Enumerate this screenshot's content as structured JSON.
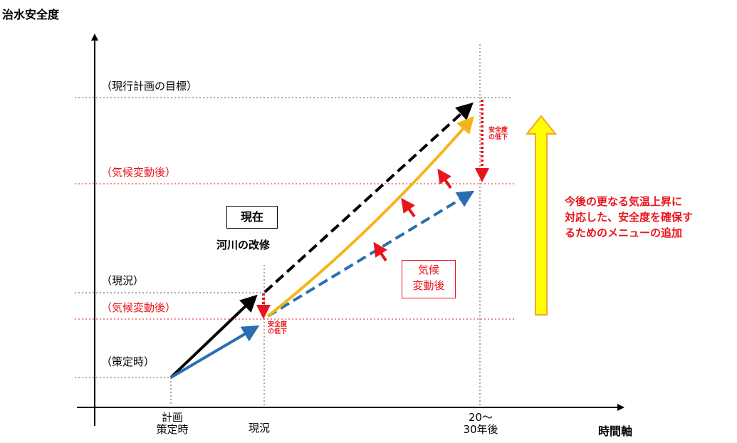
{
  "axes": {
    "y_title": "治水安全度",
    "x_title": "時間軸"
  },
  "y_levels": {
    "target": "（現行計画の目標）",
    "after_climate_upper": "（気候変動後）",
    "current": "（現況）",
    "after_climate_lower": "（気候変動後）",
    "plan_time": "（策定時）"
  },
  "x_ticks": {
    "plan_line1": "計画",
    "plan_line2": "策定時",
    "current": "現況",
    "future_line1": "20～",
    "future_line2": "30年後"
  },
  "labels": {
    "now_box": "現在",
    "river_improvement": "河川の改修",
    "climate_box_line1": "気候",
    "climate_box_line2": "変動後",
    "decline_small_1a": "安全度",
    "decline_small_1b": "の低下",
    "decline_small_2a": "安全度",
    "decline_small_2b": "の低下",
    "menu_line1": "今後の更なる気温上昇に",
    "menu_line2": "対応した、安全度を確保す",
    "menu_line3": "るためのメニューの追加"
  },
  "colors": {
    "black_arrow": "#000000",
    "blue_arrow": "#2a6fb3",
    "yellow_arrow": "#f5b51a",
    "red": "#e8141b",
    "big_arrow_fill": "#ffff00",
    "big_arrow_stroke": "#f5a623"
  }
}
